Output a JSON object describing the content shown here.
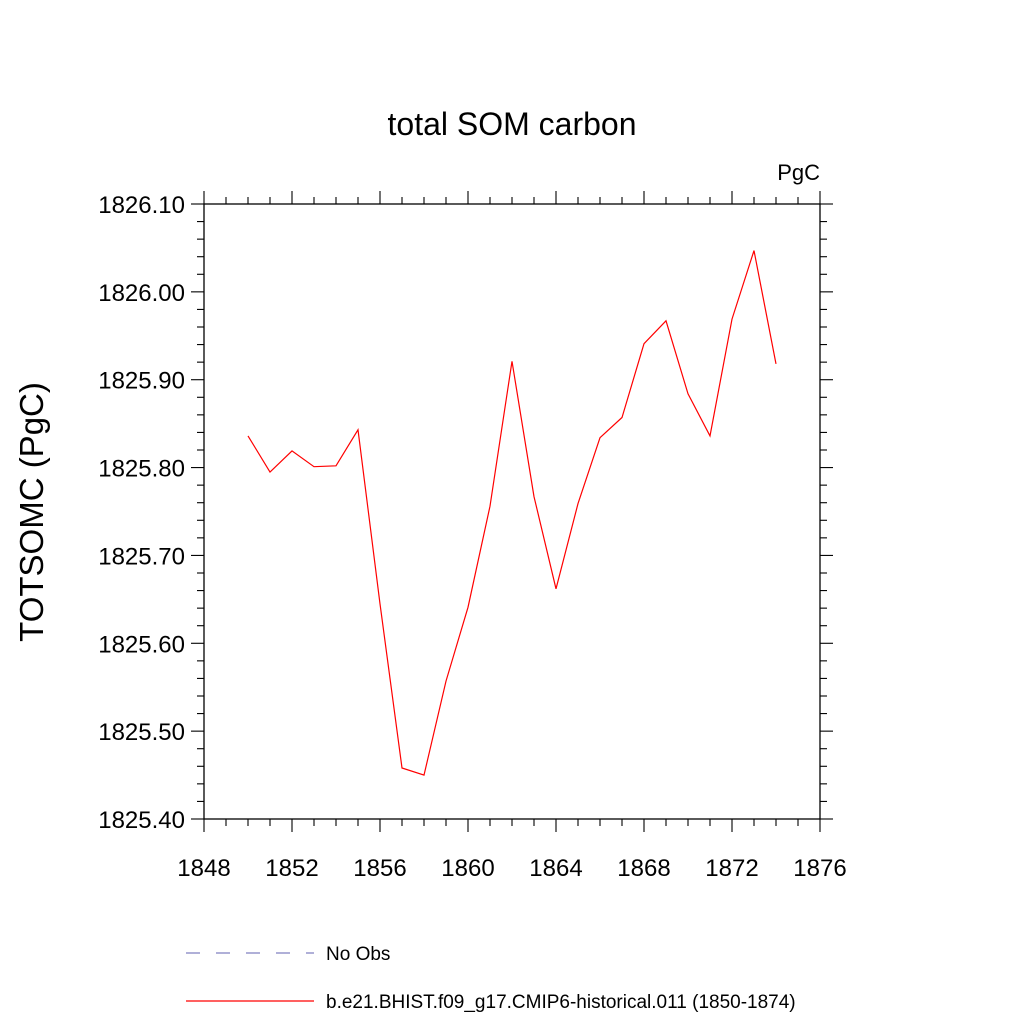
{
  "chart_data": {
    "type": "line",
    "title": "total SOM carbon",
    "units": "PgC",
    "ylabel": "TOTSOMC  (PgC)",
    "xlabel": "",
    "xlim": [
      1848,
      1876
    ],
    "ylim": [
      1825.4,
      1826.1
    ],
    "x_ticks": [
      1848,
      1852,
      1856,
      1860,
      1864,
      1868,
      1872,
      1876
    ],
    "x_tick_labels": [
      "1848",
      "1852",
      "1856",
      "1860",
      "1864",
      "1868",
      "1872",
      "1876"
    ],
    "y_ticks": [
      1825.4,
      1825.5,
      1825.6,
      1825.7,
      1825.8,
      1825.9,
      1826.0,
      1826.1
    ],
    "y_tick_labels": [
      "1825.40",
      "1825.50",
      "1825.60",
      "1825.70",
      "1825.80",
      "1825.90",
      "1826.00",
      "1826.10"
    ],
    "grid": false,
    "legend_position": "bottom",
    "series": [
      {
        "name": "b.e21.BHIST.f09_g17.CMIP6-historical.011 (1850-1874)",
        "color": "#ff0000",
        "style": "solid",
        "x": [
          1850,
          1851,
          1852,
          1853,
          1854,
          1855,
          1856,
          1857,
          1858,
          1859,
          1860,
          1861,
          1862,
          1863,
          1864,
          1865,
          1866,
          1867,
          1868,
          1869,
          1870,
          1871,
          1872,
          1873,
          1874
        ],
        "y": [
          1825.836,
          1825.795,
          1825.819,
          1825.801,
          1825.802,
          1825.843,
          1825.645,
          1825.458,
          1825.45,
          1825.557,
          1825.641,
          1825.756,
          1825.921,
          1825.767,
          1825.662,
          1825.759,
          1825.834,
          1825.857,
          1825.941,
          1825.967,
          1825.884,
          1825.836,
          1825.969,
          1826.047,
          1825.918
        ]
      }
    ],
    "legend": [
      {
        "label": "No Obs",
        "color": "#8080c0",
        "style": "dashed"
      },
      {
        "label": "b.e21.BHIST.f09_g17.CMIP6-historical.011 (1850-1874)",
        "color": "#ff0000",
        "style": "solid"
      }
    ]
  }
}
